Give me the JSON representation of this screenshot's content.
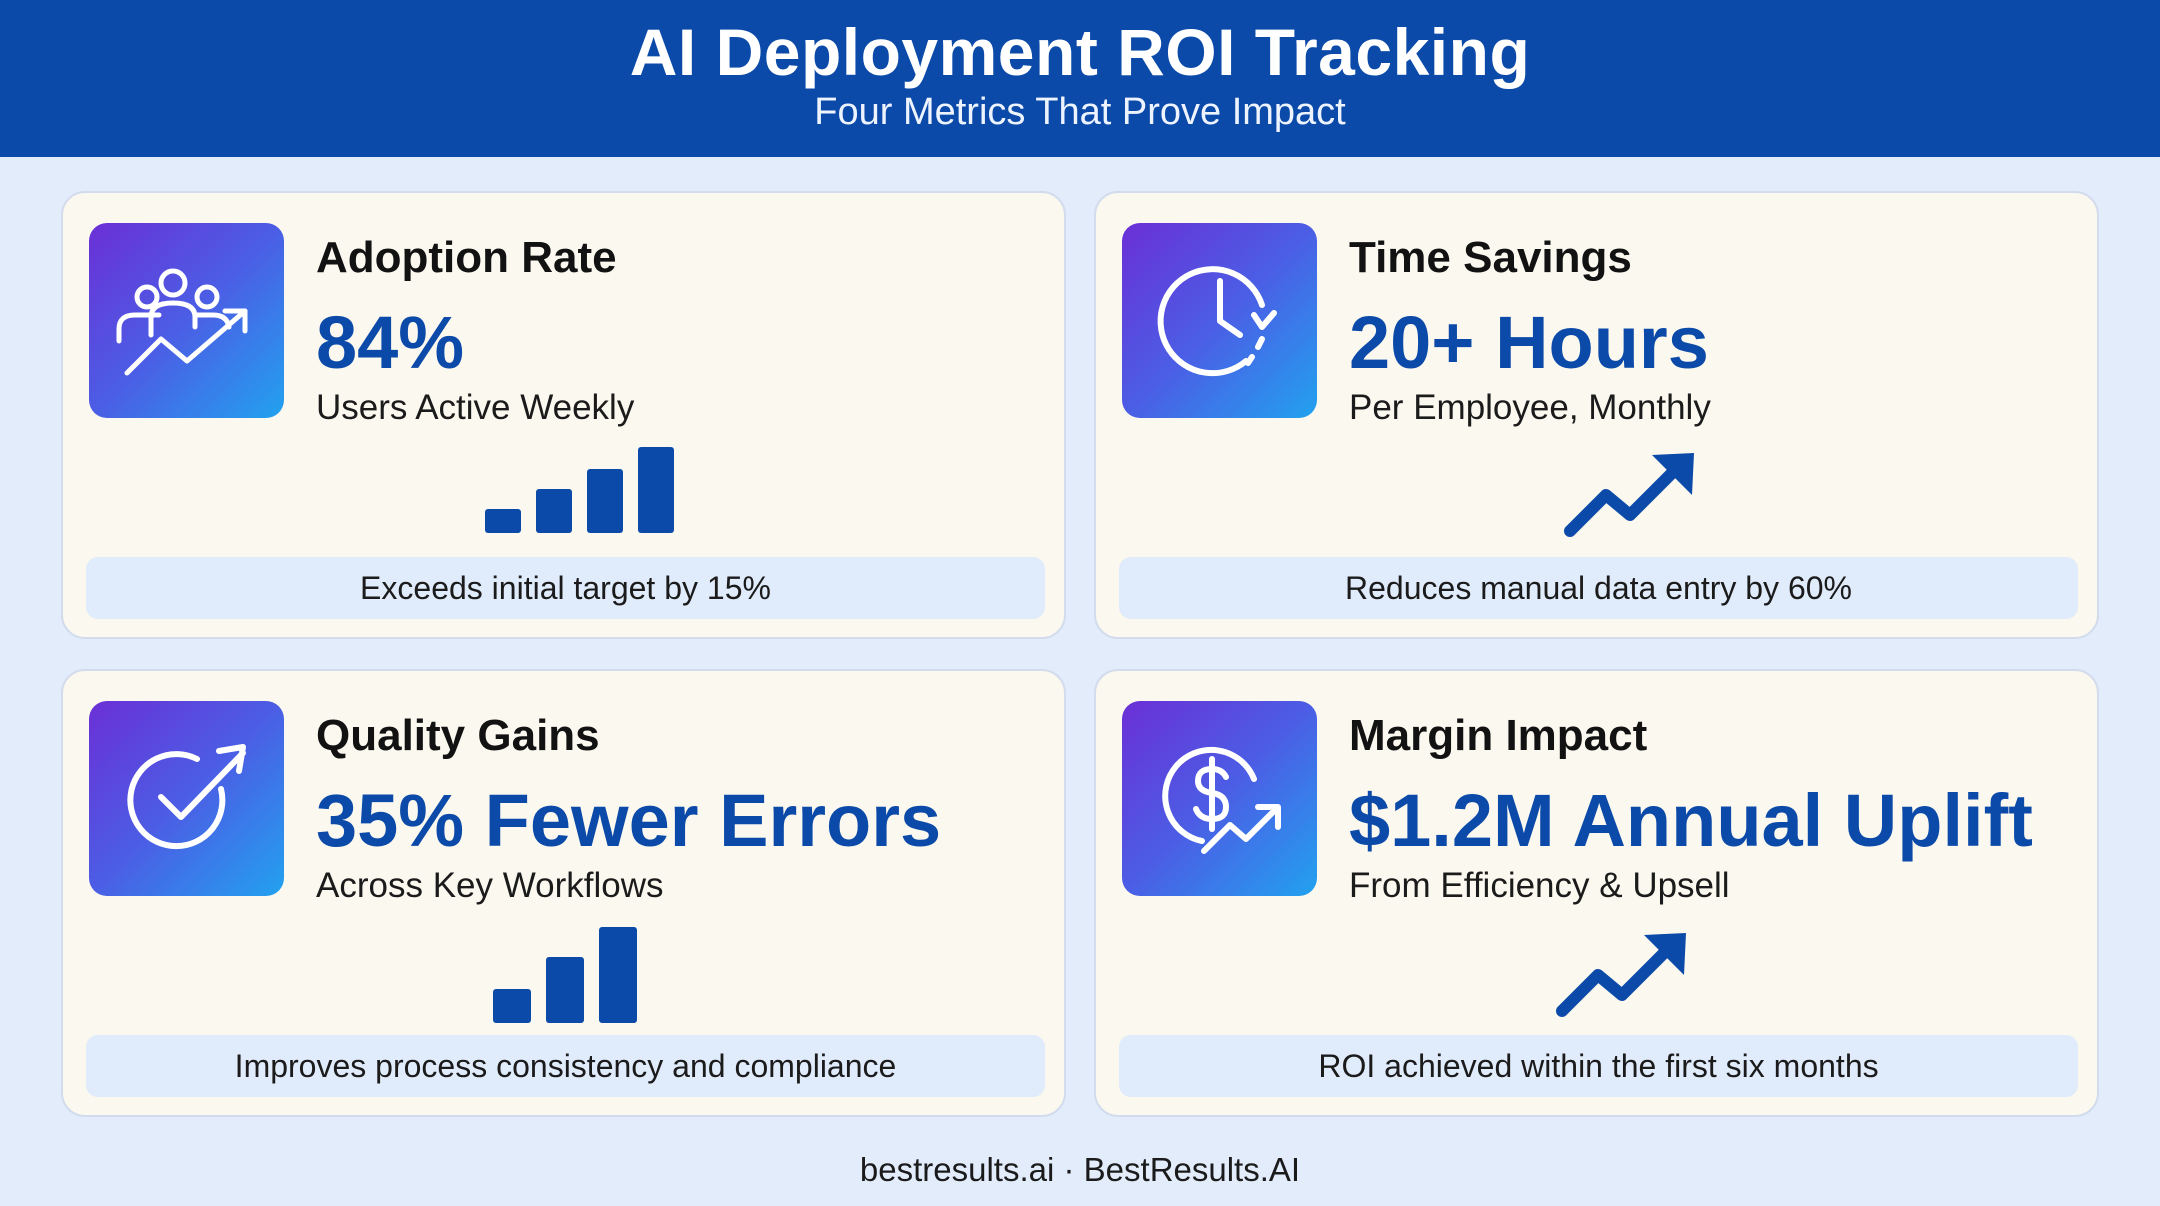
{
  "header": {
    "title": "AI Deployment ROI Tracking",
    "subtitle": "Four Metrics That Prove Impact"
  },
  "colors": {
    "header_bg": "#0b4aa8",
    "accent": "#0b4aa8",
    "page_bg": "#e2ecfb",
    "card_bg": "#fbf8ef",
    "note_bg": "#e0ebfb",
    "icon_gradient": [
      "#6b2fd6",
      "#4b5ee5",
      "#22a2ef"
    ]
  },
  "cards": [
    {
      "title": "Adoption Rate",
      "value": "84%",
      "subtitle": "Users Active Weekly",
      "note": "Exceeds initial target by 15%",
      "icon": "users-growth-icon",
      "graphic": "bar-chart-icon"
    },
    {
      "title": "Time Savings",
      "value": "20+ Hours",
      "subtitle": "Per Employee, Monthly",
      "note": "Reduces manual data entry by 60%",
      "icon": "clock-icon",
      "graphic": "trend-up-arrow-icon"
    },
    {
      "title": "Quality Gains",
      "value": "35% Fewer Errors",
      "subtitle": "Across Key Workflows",
      "note": "Improves process consistency and compliance",
      "icon": "checkmark-target-icon",
      "graphic": "bar-chart-icon"
    },
    {
      "title": "Margin Impact",
      "value": "$1.2M Annual Uplift",
      "subtitle": "From Efficiency & Upsell",
      "note": "ROI achieved within the first six months",
      "icon": "dollar-growth-icon",
      "graphic": "trend-up-arrow-icon"
    }
  ],
  "footer": {
    "text": "bestresults.ai · BestResults.AI"
  }
}
